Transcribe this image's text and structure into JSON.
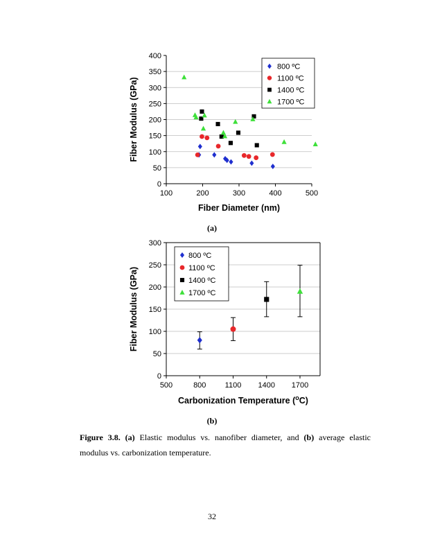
{
  "chart_data": [
    {
      "type": "scatter",
      "xlabel": "Fiber Diameter (nm)",
      "ylabel": "Fiber Modulus (GPa)",
      "xlim": [
        100,
        500
      ],
      "ylim": [
        0,
        400
      ],
      "xticks": [
        "100",
        "200",
        "300",
        "400",
        "500"
      ],
      "yticks": [
        "0",
        "50",
        "100",
        "150",
        "200",
        "250",
        "300",
        "350",
        "400"
      ],
      "grid": "horizontal",
      "legend_position": "top-right",
      "series": [
        {
          "name": "800 ºC",
          "color": "#1f2fcf",
          "marker": "diamond",
          "points": [
            [
              190,
              90
            ],
            [
              193,
              116
            ],
            [
              232,
              90
            ],
            [
              262,
              78
            ],
            [
              267,
              73
            ],
            [
              278,
              68
            ],
            [
              335,
              64
            ],
            [
              393,
              54
            ]
          ]
        },
        {
          "name": "1100 ºC",
          "color": "#e8282b",
          "marker": "circle",
          "points": [
            [
              186,
              90
            ],
            [
              198,
              147
            ],
            [
              212,
              143
            ],
            [
              243,
              117
            ],
            [
              314,
              88
            ],
            [
              327,
              85
            ],
            [
              347,
              81
            ],
            [
              392,
              91
            ]
          ]
        },
        {
          "name": "1400 ºC",
          "color": "#000000",
          "marker": "square",
          "points": [
            [
              196,
              203
            ],
            [
              198,
              225
            ],
            [
              242,
              186
            ],
            [
              252,
              147
            ],
            [
              277,
              127
            ],
            [
              298,
              159
            ],
            [
              341,
              210
            ],
            [
              349,
              120
            ]
          ]
        },
        {
          "name": "1700 ºC",
          "color": "#3ee03a",
          "marker": "triangle",
          "points": [
            [
              149,
              332
            ],
            [
              179,
              214
            ],
            [
              182,
              207
            ],
            [
              202,
              172
            ],
            [
              205,
              213
            ],
            [
              257,
              159
            ],
            [
              261,
              148
            ],
            [
              290,
              193
            ],
            [
              338,
              201
            ],
            [
              424,
              130
            ],
            [
              510,
              123
            ]
          ]
        }
      ]
    },
    {
      "type": "scatter",
      "xlabel": "Carbonization Temperature (°C)",
      "xlabel_main": "Carbonization Temperature (",
      "xlabel_sup": "o",
      "xlabel_end": "C)",
      "ylabel": "Fiber Modulus (GPa)",
      "xlim": [
        500,
        1700
      ],
      "ylim": [
        0,
        300
      ],
      "xticks": [
        "500",
        "800",
        "1100",
        "1400",
        "1700"
      ],
      "yticks": [
        "0",
        "50",
        "100",
        "150",
        "200",
        "250",
        "300"
      ],
      "grid": "horizontal",
      "legend_position": "top-left",
      "series": [
        {
          "name": "800 ºC",
          "color": "#1f2fcf",
          "marker": "diamond",
          "x": 800,
          "y": 80,
          "err_low": 60,
          "err_high": 99
        },
        {
          "name": "1100 ºC",
          "color": "#e8282b",
          "marker": "circle",
          "x": 1100,
          "y": 105,
          "err_low": 79,
          "err_high": 131
        },
        {
          "name": "1400 ºC",
          "color": "#000000",
          "marker": "square",
          "x": 1400,
          "y": 172,
          "err_low": 133,
          "err_high": 212
        },
        {
          "name": "1700 ºC",
          "color": "#3ee03a",
          "marker": "triangle",
          "x": 1700,
          "y": 190,
          "err_low": 133,
          "err_high": 249
        }
      ]
    }
  ],
  "labels": {
    "a": "(a)",
    "b": "(b)"
  },
  "caption": {
    "figure_label": "Figure 3.8.",
    "bold_a": "(a)",
    "text_a": " Elastic modulus vs. nanofiber diameter, and ",
    "bold_b": "(b)",
    "text_b": " average elastic modulus vs. carbonization temperature."
  },
  "page_number": "32"
}
